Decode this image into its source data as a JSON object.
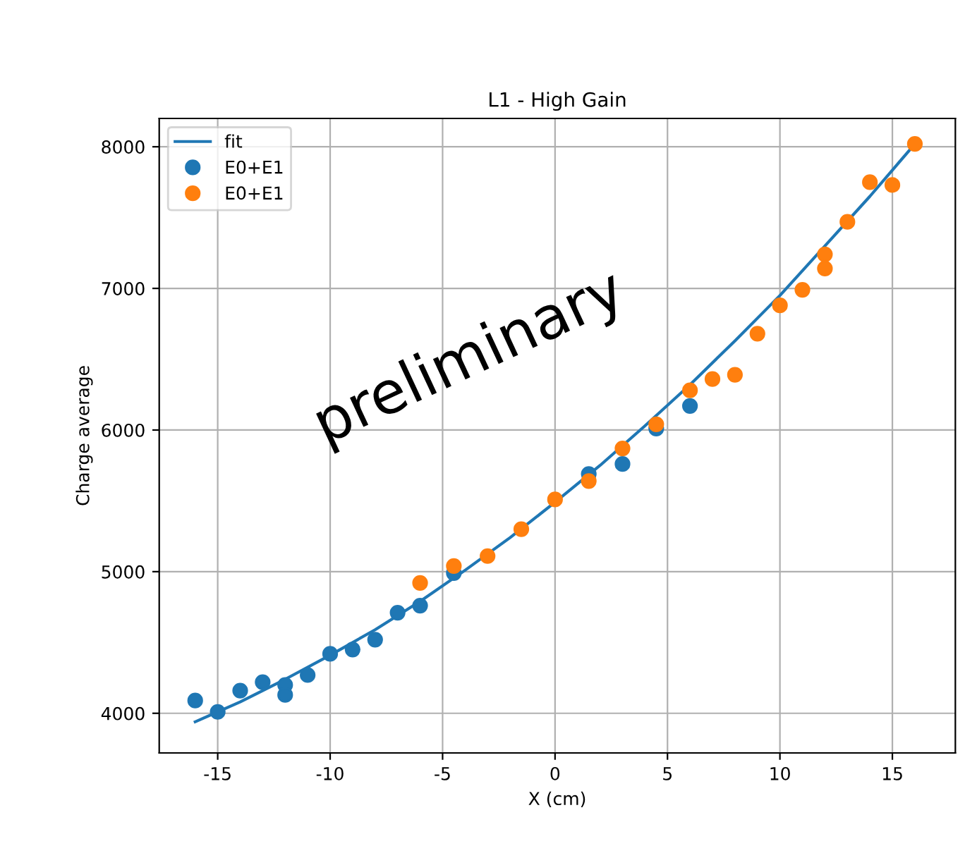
{
  "chart_data": {
    "type": "scatter",
    "title": "L1 - High Gain",
    "xlabel": "X (cm)",
    "ylabel": "Charge average",
    "series": [
      {
        "name": "fit",
        "type": "line",
        "color": "#1f77b4",
        "x": [
          -16,
          -14,
          -12,
          -10,
          -8,
          -6,
          -4,
          -2,
          0,
          2,
          4,
          6,
          8,
          10,
          12,
          14,
          16
        ],
        "values": [
          3940,
          4080,
          4240,
          4410,
          4590,
          4790,
          5010,
          5240,
          5490,
          5750,
          6030,
          6320,
          6630,
          6950,
          7300,
          7650,
          8020
        ]
      },
      {
        "name": "E0+E1",
        "color": "#1f77b4",
        "marker": "circle",
        "x": [
          -16,
          -15,
          -14,
          -13,
          -12,
          -12,
          -11,
          -10,
          -9,
          -8,
          -7,
          -6,
          -4.5,
          1.5,
          3,
          4.5,
          6
        ],
        "values": [
          4090,
          4010,
          4160,
          4220,
          4200,
          4130,
          4270,
          4420,
          4450,
          4520,
          4710,
          4760,
          4990,
          5690,
          5760,
          6010,
          6170
        ]
      },
      {
        "name": "E0+E1",
        "color": "#ff7f0e",
        "marker": "circle",
        "x": [
          -6,
          -4.5,
          -3,
          -1.5,
          0,
          1.5,
          3,
          4.5,
          6,
          7,
          8,
          9,
          10,
          11,
          12,
          12,
          13,
          14,
          15,
          16
        ],
        "values": [
          4920,
          5040,
          5110,
          5300,
          5510,
          5640,
          5870,
          6040,
          6280,
          6360,
          6390,
          6680,
          6880,
          6990,
          7240,
          7140,
          7470,
          7750,
          7730,
          8020
        ]
      }
    ],
    "xlim": [
      -17.6,
      17.8
    ],
    "ylim": [
      3720,
      8200
    ],
    "xticks": [
      -15,
      -10,
      -5,
      0,
      5,
      10,
      15
    ],
    "yticks": [
      4000,
      5000,
      6000,
      7000,
      8000
    ],
    "grid": true,
    "legend": "top left",
    "annotations": [
      "preliminary"
    ]
  }
}
